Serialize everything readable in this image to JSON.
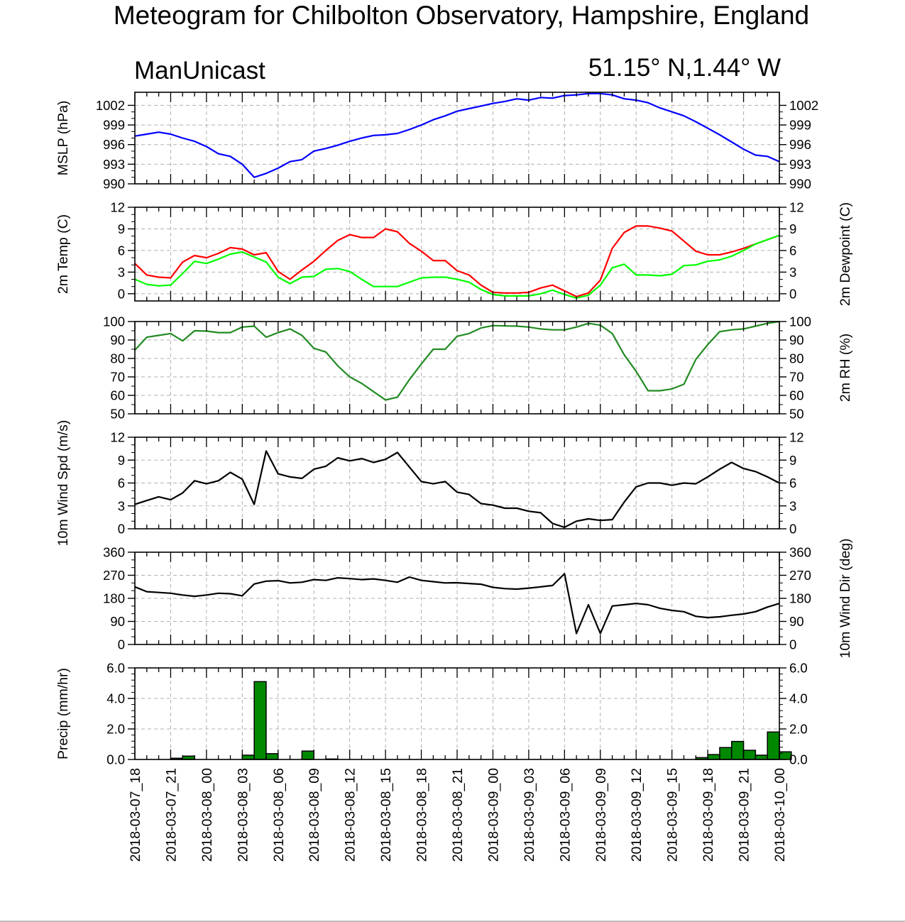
{
  "title": "Meteogram for Chilbolton Observatory, Hampshire, England",
  "model": "ManUnicast",
  "location": "51.15° N,1.44° W",
  "chart_data": {
    "type": "line",
    "x_tick_labels": [
      "2018-03-07_18",
      "2018-03-07_21",
      "2018-03-08_00",
      "2018-03-08_03",
      "2018-03-08_06",
      "2018-03-08_09",
      "2018-03-08_12",
      "2018-03-08_15",
      "2018-03-08_18",
      "2018-03-08_21",
      "2018-03-09_00",
      "2018-03-09_03",
      "2018-03-09_06",
      "2018-03-09_09",
      "2018-03-09_12",
      "2018-03-09_15",
      "2018-03-09_18",
      "2018-03-09_21",
      "2018-03-10_00"
    ],
    "x_step_hours": 1,
    "x_range_hours": [
      0,
      54
    ],
    "grid": true,
    "panels": [
      {
        "id": "mslp",
        "type": "line",
        "ylabel_left": "MSLP (hPa)",
        "ylabel_right": "",
        "ylim": [
          990,
          1004
        ],
        "ticks": [
          990,
          993,
          996,
          999,
          1002
        ],
        "tick_labels": [
          "990",
          "993",
          "996",
          "999",
          "1002"
        ],
        "series": [
          {
            "color": "#0000ff",
            "values": [
              997.3,
              997.6,
              997.9,
              997.6,
              997.0,
              996.5,
              995.7,
              994.6,
              994.2,
              993.0,
              991.0,
              991.6,
              992.4,
              993.4,
              993.7,
              995.0,
              995.4,
              995.9,
              996.5,
              997.0,
              997.4,
              997.5,
              997.7,
              998.3,
              999.0,
              999.8,
              1000.4,
              1001.1,
              1001.5,
              1001.9,
              1002.3,
              1002.6,
              1003.0,
              1002.8,
              1003.2,
              1003.1,
              1003.5,
              1003.6,
              1003.8,
              1003.8,
              1003.6,
              1003.0,
              1002.8,
              1002.4,
              1001.6,
              1001.0,
              1000.4,
              999.5,
              998.5,
              997.5,
              996.4,
              995.3,
              994.4,
              994.2,
              993.4
            ]
          }
        ]
      },
      {
        "id": "temp",
        "type": "line",
        "ylabel_left": "2m Temp (C)",
        "ylabel_right": "2m Dewpoint (C)",
        "ylim": [
          -1,
          12
        ],
        "ticks": [
          0,
          3,
          6,
          9,
          12
        ],
        "tick_labels": [
          "0",
          "3",
          "6",
          "9",
          "12"
        ],
        "series": [
          {
            "color": "#ff0000",
            "values": [
              4.2,
              2.6,
              2.3,
              2.2,
              4.4,
              5.3,
              5.0,
              5.6,
              6.4,
              6.2,
              5.4,
              5.7,
              3.1,
              2.0,
              3.3,
              4.5,
              6.0,
              7.4,
              8.2,
              7.8,
              7.8,
              9.0,
              8.6,
              7.0,
              5.9,
              4.6,
              4.6,
              3.2,
              2.6,
              1.2,
              0.2,
              0.1,
              0.1,
              0.2,
              0.8,
              1.2,
              0.4,
              -0.4,
              0.1,
              1.9,
              6.3,
              8.5,
              9.4,
              9.4,
              9.1,
              8.7,
              7.3,
              5.9,
              5.4,
              5.4,
              5.8,
              6.3,
              6.9,
              7.5,
              8.1
            ]
          },
          {
            "color": "#00ff00",
            "values": [
              2.0,
              1.3,
              1.1,
              1.2,
              2.8,
              4.5,
              4.2,
              4.8,
              5.5,
              5.8,
              5.1,
              4.4,
              2.3,
              1.4,
              2.3,
              2.4,
              3.4,
              3.5,
              3.1,
              2.0,
              1.0,
              1.0,
              1.0,
              1.6,
              2.2,
              2.3,
              2.3,
              2.0,
              1.6,
              0.6,
              -0.1,
              -0.3,
              -0.3,
              -0.3,
              0.0,
              0.5,
              -0.1,
              -0.6,
              -0.2,
              1.2,
              3.6,
              4.1,
              2.6,
              2.6,
              2.5,
              2.7,
              3.9,
              4.0,
              4.5,
              4.7,
              5.2,
              6.0,
              6.9,
              7.5,
              8.1
            ]
          }
        ]
      },
      {
        "id": "rh",
        "type": "line",
        "ylabel_left": "",
        "ylabel_right": "2m RH (%)",
        "ylim": [
          50,
          100
        ],
        "ticks": [
          50,
          60,
          70,
          80,
          90,
          100
        ],
        "tick_labels": [
          "50",
          "60",
          "70",
          "80",
          "90",
          "100"
        ],
        "series": [
          {
            "color": "#228b22",
            "values": [
              84.5,
              91.5,
              92.5,
              93.5,
              89.5,
              95.0,
              94.8,
              94.0,
              94.0,
              97.0,
              97.5,
              91.5,
              94.0,
              96.0,
              92.5,
              85.5,
              83.5,
              76.0,
              70.0,
              66.5,
              62.0,
              57.5,
              59.0,
              68.5,
              77.0,
              85.0,
              85.0,
              92.0,
              93.5,
              96.5,
              97.8,
              97.6,
              97.5,
              97.0,
              96.0,
              95.5,
              95.5,
              97.0,
              99.0,
              98.0,
              93.5,
              82.0,
              73.0,
              62.5,
              62.5,
              63.5,
              66.0,
              79.5,
              87.5,
              94.5,
              95.5,
              96.0,
              97.5,
              99.0,
              100.0
            ]
          }
        ]
      },
      {
        "id": "wind_speed",
        "type": "line",
        "ylabel_left": "10m Wind Spd (m/s)",
        "ylabel_right": "",
        "ylim": [
          0,
          12
        ],
        "ticks": [
          0,
          3,
          6,
          9,
          12
        ],
        "tick_labels": [
          "0",
          "3",
          "6",
          "9",
          "12"
        ],
        "series": [
          {
            "color": "#000000",
            "values": [
              3.2,
              3.7,
              4.2,
              3.8,
              4.7,
              6.3,
              5.9,
              6.3,
              7.4,
              6.5,
              3.2,
              10.2,
              7.2,
              6.8,
              6.6,
              7.8,
              8.2,
              9.3,
              8.9,
              9.2,
              8.7,
              9.1,
              10.0,
              8.1,
              6.2,
              5.9,
              6.2,
              4.8,
              4.5,
              3.3,
              3.1,
              2.7,
              2.7,
              2.3,
              2.1,
              0.7,
              0.2,
              1.0,
              1.3,
              1.1,
              1.2,
              3.5,
              5.5,
              6.0,
              6.0,
              5.7,
              6.0,
              5.9,
              6.8,
              7.8,
              8.7,
              7.9,
              7.5,
              6.8,
              6.0
            ]
          }
        ]
      },
      {
        "id": "wind_dir",
        "type": "line",
        "ylabel_left": "",
        "ylabel_right": "10m Wind Dir (deg)",
        "ylim": [
          0,
          360
        ],
        "ticks": [
          0,
          90,
          180,
          270,
          360
        ],
        "tick_labels": [
          "0",
          "90",
          "180",
          "270",
          "360"
        ],
        "series": [
          {
            "color": "#000000",
            "values": [
              225,
              206,
              203,
              200,
              193,
              188,
              193,
              200,
              198,
              190,
              236,
              247,
              249,
              240,
              243,
              253,
              250,
              260,
              257,
              253,
              256,
              250,
              243,
              263,
              250,
              245,
              240,
              241,
              238,
              235,
              223,
              218,
              216,
              220,
              225,
              230,
              276,
              43,
              155,
              43,
              150,
              155,
              160,
              155,
              141,
              133,
              128,
              110,
              105,
              108,
              114,
              119,
              128,
              146,
              160
            ]
          }
        ]
      },
      {
        "id": "precip",
        "type": "bar",
        "ylabel_left": "Precip (mm/hr)",
        "ylabel_right": "",
        "ylim": [
          0,
          6
        ],
        "ticks": [
          0,
          2,
          4,
          6
        ],
        "tick_labels": [
          "0.0",
          "2.0",
          "4.0",
          "6.0"
        ],
        "series": [
          {
            "color": "#008800",
            "values": [
              0,
              0,
              0,
              0.08,
              0.22,
              0,
              0,
              0,
              0,
              0.28,
              5.1,
              0.38,
              0,
              0,
              0.55,
              0,
              0.03,
              0,
              0,
              0,
              0,
              0,
              0,
              0,
              0,
              0,
              0,
              0,
              0,
              0,
              0,
              0,
              0,
              0,
              0,
              0,
              0,
              0,
              0,
              0,
              0,
              0,
              0,
              0,
              0,
              0,
              0,
              0.12,
              0.32,
              0.78,
              1.18,
              0.6,
              0.28,
              1.8,
              0.5
            ]
          }
        ]
      }
    ]
  }
}
